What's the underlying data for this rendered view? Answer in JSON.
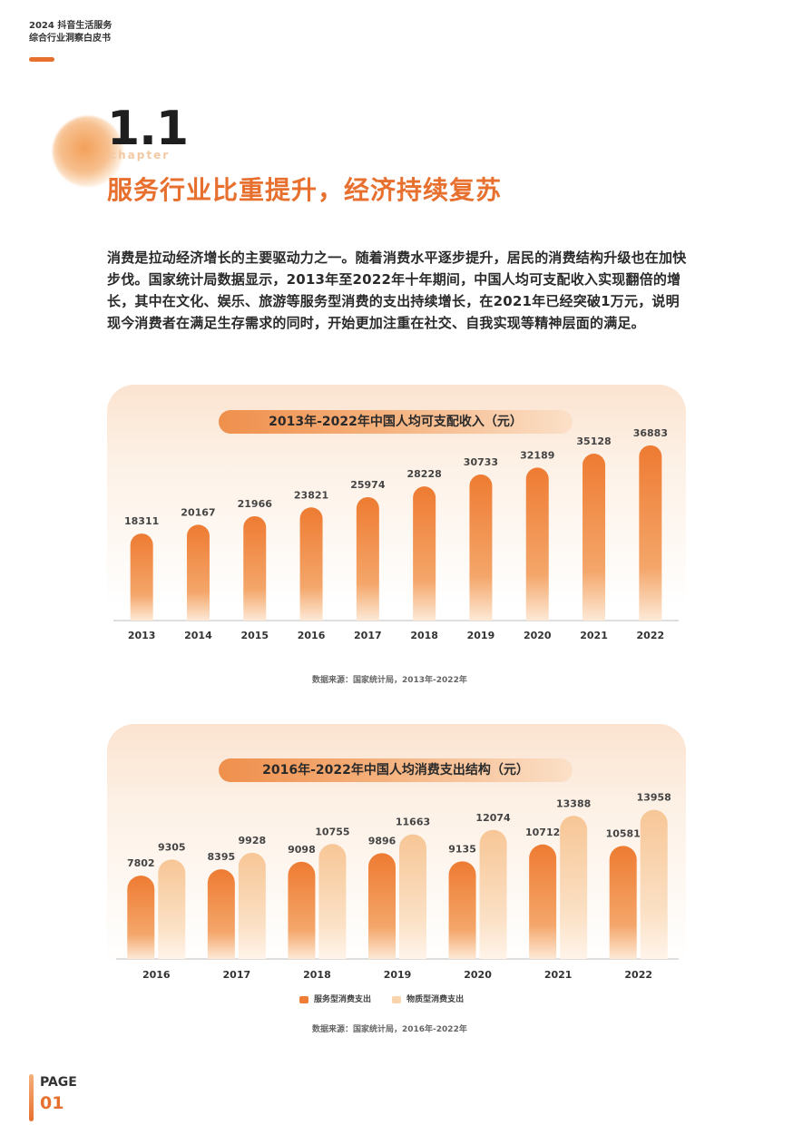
{
  "header": {
    "line1": "2024 抖音生活服务",
    "line2": "综合行业洞察白皮书"
  },
  "chapter": {
    "number": "1.1",
    "word": "chapter",
    "title": "服务行业比重提升，经济持续复苏"
  },
  "intro": "消费是拉动经济增长的主要驱动力之一。随着消费水平逐步提升，居民的消费结构升级也在加快步伐。国家统计局数据显示，2013年至2022年十年期间，中国人均可支配收入实现翻倍的增长，其中在文化、娱乐、旅游等服务型消费的支出持续增长，在2021年已经突破1万元，说明现今消费者在满足生存需求的同时，开始更加注重在社交、自我实现等精神层面的满足。",
  "chart1_source": "数据来源：国家统计局，2013年-2022年",
  "chart2_source": "数据来源：国家统计局，2016年-2022年",
  "colors": {
    "accent": "#e8702f",
    "dark_bar": "#ee7d35",
    "light_bar": "#f9d4ad"
  },
  "chart_data": [
    {
      "type": "bar",
      "title": "2013年-2022年中国人均可支配收入（元）",
      "categories": [
        "2013",
        "2014",
        "2015",
        "2016",
        "2017",
        "2018",
        "2019",
        "2020",
        "2021",
        "2022"
      ],
      "values": [
        18311,
        20167,
        21966,
        23821,
        25974,
        28228,
        30733,
        32189,
        35128,
        36883
      ],
      "xlabel": "",
      "ylabel": "",
      "ylim": [
        0,
        40000
      ],
      "grid": false
    },
    {
      "type": "bar",
      "title": "2016年-2022年中国人均消费支出结构（元）",
      "categories": [
        "2016",
        "2017",
        "2018",
        "2019",
        "2020",
        "2021",
        "2022"
      ],
      "series": [
        {
          "name": "服务型消费支出",
          "values": [
            7802,
            8395,
            9098,
            9896,
            9135,
            10712,
            10581
          ]
        },
        {
          "name": "物质型消费支出",
          "values": [
            9305,
            9928,
            10755,
            11663,
            12074,
            13388,
            13958
          ]
        }
      ],
      "xlabel": "",
      "ylabel": "",
      "ylim": [
        0,
        16500
      ],
      "grid": false,
      "legend": "bottom"
    }
  ],
  "page": {
    "label": "PAGE",
    "number": "01"
  }
}
